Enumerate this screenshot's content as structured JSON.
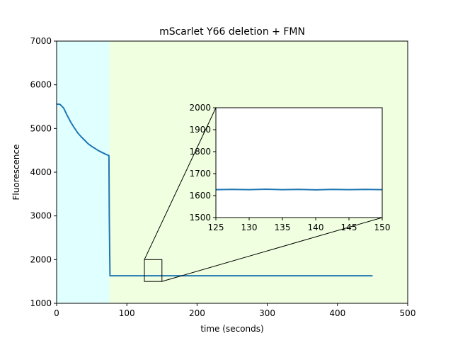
{
  "chart_data": {
    "type": "line",
    "title": "mScarlet Y66 deletion + FMN",
    "xlabel": "time (seconds)",
    "ylabel": "Fluorescence",
    "xlim": [
      0,
      500
    ],
    "ylim": [
      1000,
      7000
    ],
    "xticks": [
      "0",
      "100",
      "200",
      "300",
      "400",
      "500"
    ],
    "yticks": [
      "1000",
      "2000",
      "3000",
      "4000",
      "5000",
      "6000",
      "7000"
    ],
    "grid": false,
    "legend": "none",
    "shaded_regions": [
      {
        "x": [
          0,
          75
        ],
        "color": "#e0ffff"
      },
      {
        "x": [
          75,
          500
        ],
        "color": "#f0ffe0"
      }
    ],
    "series": [
      {
        "color": "#1f77b4",
        "x": [
          0,
          5,
          10,
          15,
          20,
          25,
          30,
          35,
          40,
          45,
          50,
          55,
          60,
          65,
          70,
          74.5,
          75,
          76,
          100,
          150,
          200,
          250,
          300,
          350,
          400,
          450
        ],
        "y": [
          5560,
          5550,
          5470,
          5300,
          5150,
          5020,
          4900,
          4810,
          4730,
          4650,
          4590,
          4540,
          4490,
          4450,
          4410,
          4380,
          3000,
          1630,
          1630,
          1630,
          1630,
          1630,
          1630,
          1630,
          1630,
          1630
        ]
      }
    ],
    "zoom_box": {
      "x": [
        125,
        150
      ],
      "y": [
        1500,
        2000
      ]
    },
    "inset": {
      "xlim": [
        125,
        150
      ],
      "ylim": [
        1500,
        2000
      ],
      "xticks": [
        "125",
        "130",
        "135",
        "140",
        "145",
        "150"
      ],
      "yticks": [
        "1500",
        "1600",
        "1700",
        "1800",
        "1900",
        "2000"
      ],
      "series": [
        {
          "color": "#1f77b4",
          "x": [
            125,
            127.5,
            130,
            132.5,
            135,
            137.5,
            140,
            142.5,
            145,
            147.5,
            150
          ],
          "y": [
            1627,
            1628,
            1627,
            1629,
            1627,
            1628,
            1626,
            1628,
            1627,
            1628,
            1627
          ]
        }
      ]
    }
  }
}
